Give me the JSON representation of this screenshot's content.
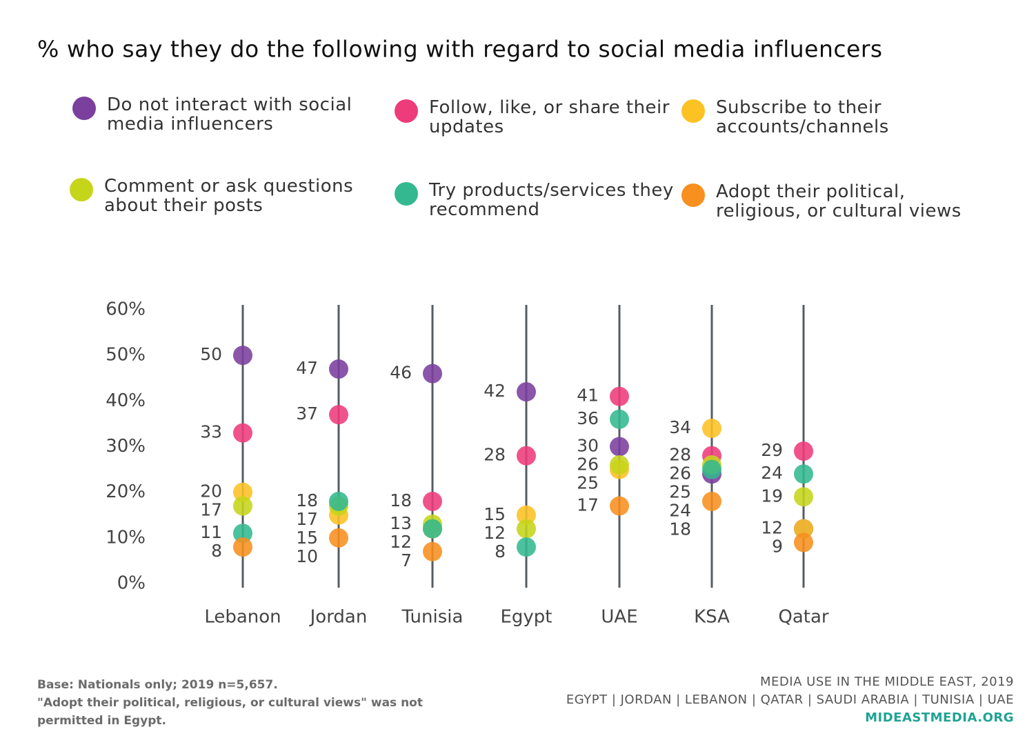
{
  "chart_data": {
    "type": "dot",
    "title": "% who say they do the following with regard to social media influencers",
    "categories": [
      "Lebanon",
      "Jordan",
      "Tunisia",
      "Egypt",
      "UAE",
      "KSA",
      "Qatar"
    ],
    "series": [
      {
        "name": "Do not interact with social media influencers",
        "color": "#7b3f9e",
        "values": [
          50,
          47,
          46,
          42,
          30,
          24,
          12
        ],
        "value_labels": [
          "50",
          "47",
          "46",
          "42",
          "30",
          "24",
          null
        ]
      },
      {
        "name": "Follow, like, or share their updates",
        "color": "#ee3b7a",
        "values": [
          33,
          37,
          18,
          28,
          41,
          28,
          29
        ]
      },
      {
        "name": "Subscribe to their accounts/channels",
        "color": "#fcc223",
        "values": [
          20,
          15,
          12,
          15,
          25,
          34,
          12
        ],
        "value_labels": [
          "20",
          "15",
          null,
          "15",
          "25",
          "34",
          "12"
        ]
      },
      {
        "name": "Comment or ask questions about their posts",
        "color": "#c5d51a",
        "values": [
          17,
          17,
          13,
          12,
          26,
          26,
          19
        ]
      },
      {
        "name": "Try products/services they recommend",
        "color": "#33b88f",
        "values": [
          11,
          18,
          12,
          8,
          36,
          25,
          24
        ]
      },
      {
        "name": "Adopt their political, religious, or cultural views",
        "color": "#f7901e",
        "values": [
          8,
          10,
          7,
          null,
          17,
          18,
          9
        ]
      }
    ],
    "ylim": [
      0,
      60
    ],
    "yticks": [
      {
        "value": 0,
        "label": "0%"
      },
      {
        "value": 10,
        "label": "10%"
      },
      {
        "value": 20,
        "label": "20%"
      },
      {
        "value": 30,
        "label": "30%"
      },
      {
        "value": 40,
        "label": "40%"
      },
      {
        "value": 50,
        "label": "50%"
      },
      {
        "value": 60,
        "label": "60%"
      }
    ]
  },
  "footer": {
    "notes": [
      "Base: Nationals only; 2019 n=5,657.",
      "\"Adopt their political, religious, or cultural views\" was not permitted in Egypt."
    ],
    "source": [
      "MEDIA USE IN THE MIDDLE EAST, 2019",
      "EGYPT | JORDAN | LEBANON | QATAR | SAUDI ARABIA | TUNISIA | UAE",
      "MIDEASTMEDIA.ORG"
    ]
  }
}
